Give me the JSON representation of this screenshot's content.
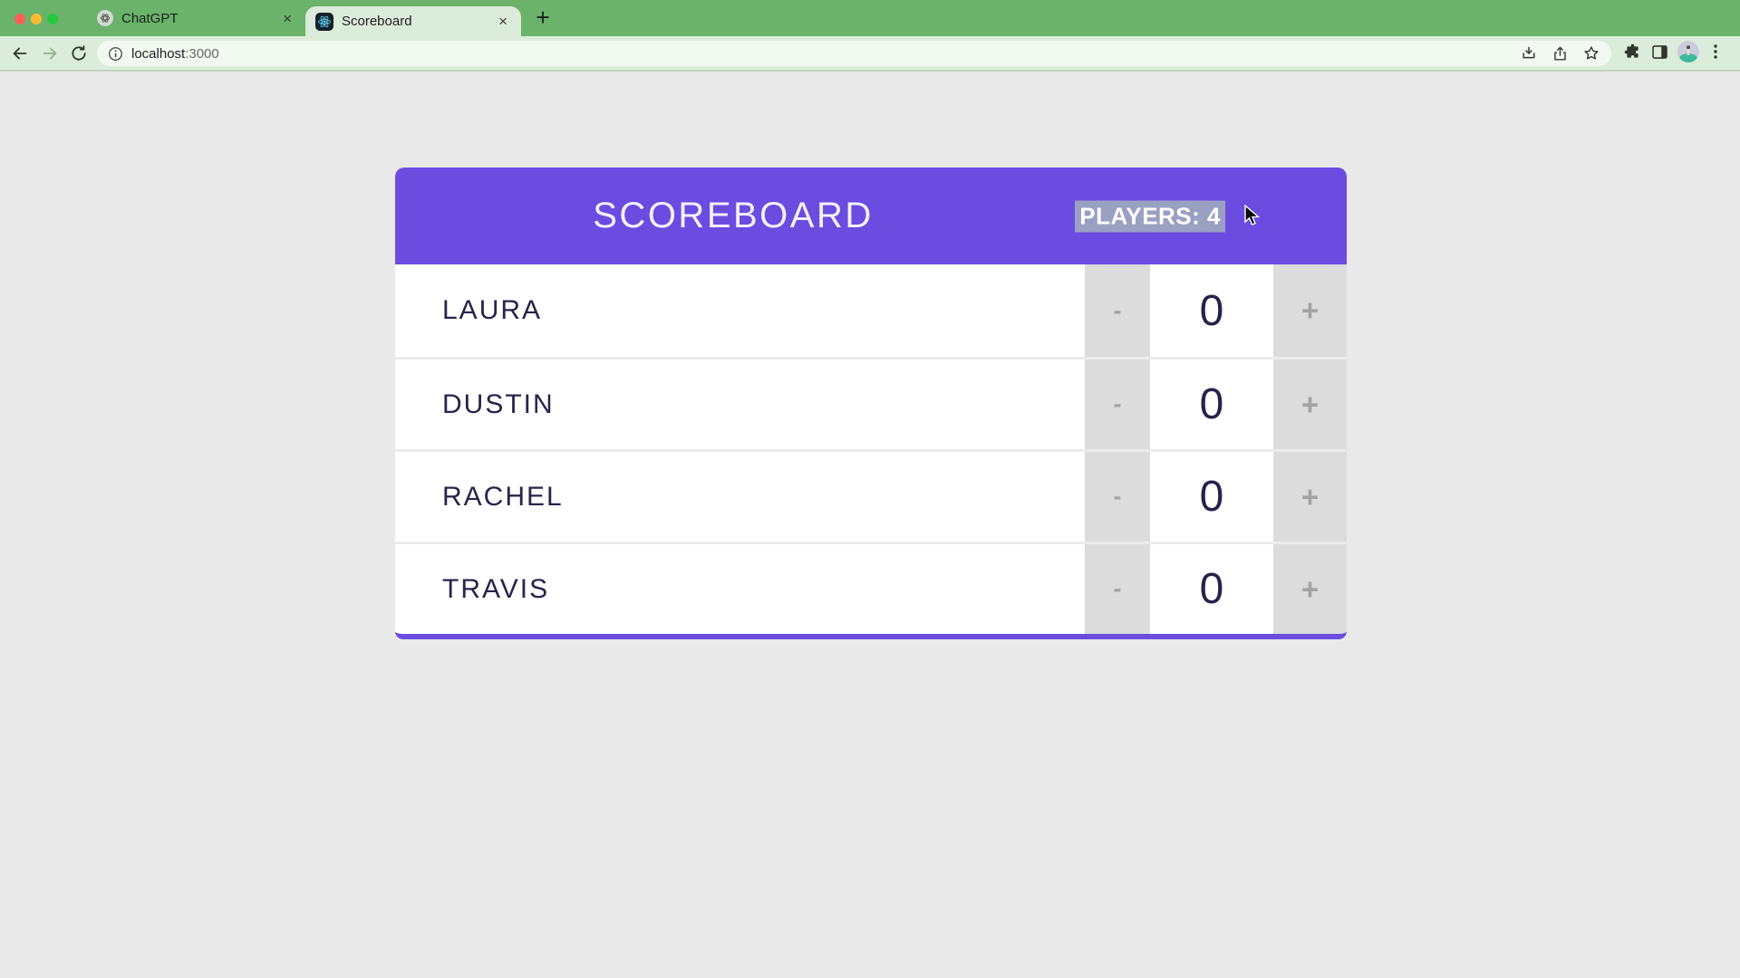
{
  "browser": {
    "window_controls": {
      "close": "close-dot",
      "minimize": "minimize-dot",
      "zoom": "zoom-dot"
    },
    "tabs": [
      {
        "title": "ChatGPT",
        "favicon": "openai-icon",
        "active": false
      },
      {
        "title": "Scoreboard",
        "favicon": "react-icon",
        "active": true
      }
    ],
    "close_glyph": "×",
    "new_tab_glyph": "+",
    "toolbar": {
      "url_host": "localhost",
      "url_port": ":3000",
      "icons": [
        "back-icon",
        "forward-icon",
        "reload-icon",
        "info-icon",
        "download-icon",
        "share-icon",
        "bookmark-star-icon",
        "extensions-puzzle-icon",
        "side-panel-icon",
        "profile-avatar",
        "menu-dots-icon"
      ]
    }
  },
  "page": {
    "header": {
      "title": "SCOREBOARD",
      "players_label": "PLAYERS: 4"
    },
    "players": [
      {
        "name": "LAURA",
        "score": "0"
      },
      {
        "name": "DUSTIN",
        "score": "0"
      },
      {
        "name": "RACHEL",
        "score": "0"
      },
      {
        "name": "TRAVIS",
        "score": "0"
      }
    ],
    "minus_label": "-",
    "plus_label": "+"
  },
  "colors": {
    "accent_purple": "#6b4ce1",
    "selection_highlight": "#9aa0c2",
    "frame_green": "#6bb26a",
    "toolbar_green": "#dcecda",
    "cell_gray": "#dcdcdc",
    "text_navy": "#26244b",
    "page_background": "#e9e9e9"
  }
}
